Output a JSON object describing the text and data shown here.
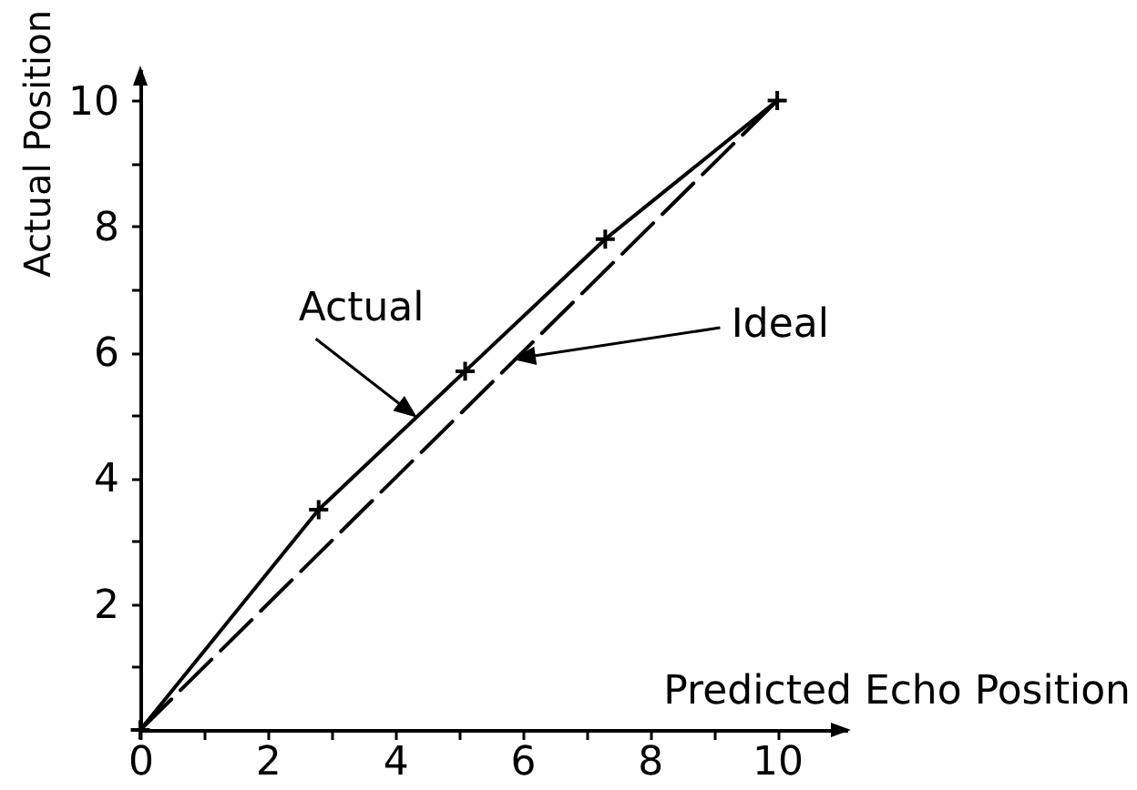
{
  "chart_data": {
    "type": "line",
    "xlabel": "Predicted Echo Position",
    "ylabel": "Actual Position",
    "xlim": [
      0,
      11.1
    ],
    "ylim": [
      0,
      10.5
    ],
    "xticks": [
      0,
      {
        "value": 1,
        "label": null
      },
      2,
      {
        "value": 3,
        "label": null
      },
      4,
      {
        "value": 5,
        "label": null
      },
      6,
      {
        "value": 7,
        "label": null
      },
      8,
      {
        "value": 9,
        "label": null
      },
      10
    ],
    "yticks": [
      {
        "value": 1,
        "label": null
      },
      2,
      {
        "value": 3,
        "label": null
      },
      4,
      {
        "value": 5,
        "label": null
      },
      6,
      {
        "value": 7,
        "label": null
      },
      8,
      {
        "value": 9,
        "label": null
      },
      10
    ],
    "series": [
      {
        "color": "#000000",
        "x": [
          0,
          2.8,
          5.1,
          7.3,
          10
        ],
        "values": [
          0,
          3.5,
          5.7,
          7.8,
          10
        ],
        "marker": "cross",
        "line_style": "solid"
      },
      {
        "color": "#000000",
        "x": [
          0,
          10
        ],
        "values": [
          0,
          10
        ],
        "marker": "none",
        "line_style": "dashed"
      }
    ],
    "annotations": [
      {
        "text": "Actual",
        "x": 4.3,
        "y": 5.0
      },
      {
        "text": "Ideal",
        "x": 5.9,
        "y": 5.9
      }
    ]
  }
}
